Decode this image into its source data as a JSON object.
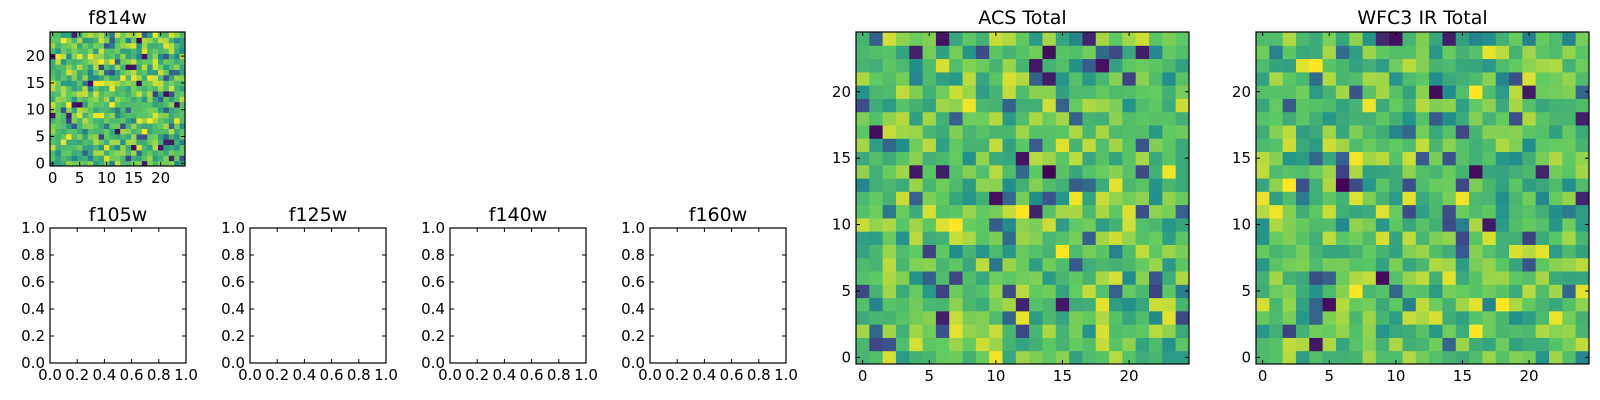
{
  "chart_data": [
    {
      "id": "f814w",
      "type": "heatmap",
      "title": "f814w",
      "grid_size": 25,
      "xlim": [
        -0.5,
        24.5
      ],
      "ylim": [
        -0.5,
        24.5
      ],
      "xticks": [
        0,
        5,
        10,
        15,
        20
      ],
      "yticks": [
        0,
        5,
        10,
        15,
        20
      ],
      "value_range": [
        0,
        1
      ],
      "seed": 814
    },
    {
      "id": "f105w",
      "type": "heatmap",
      "title": "f105w",
      "empty": true,
      "xlim": [
        0,
        1
      ],
      "ylim": [
        0,
        1
      ],
      "xticks": [
        "0.0",
        "0.2",
        "0.4",
        "0.6",
        "0.8",
        "1.0"
      ],
      "yticks": [
        "0.0",
        "0.2",
        "0.4",
        "0.6",
        "0.8",
        "1.0"
      ]
    },
    {
      "id": "f125w",
      "type": "heatmap",
      "title": "f125w",
      "empty": true,
      "xlim": [
        0,
        1
      ],
      "ylim": [
        0,
        1
      ],
      "xticks": [
        "0.0",
        "0.2",
        "0.4",
        "0.6",
        "0.8",
        "1.0"
      ],
      "yticks": [
        "0.0",
        "0.2",
        "0.4",
        "0.6",
        "0.8",
        "1.0"
      ]
    },
    {
      "id": "f140w",
      "type": "heatmap",
      "title": "f140w",
      "empty": true,
      "xlim": [
        0,
        1
      ],
      "ylim": [
        0,
        1
      ],
      "xticks": [
        "0.0",
        "0.2",
        "0.4",
        "0.6",
        "0.8",
        "1.0"
      ],
      "yticks": [
        "0.0",
        "0.2",
        "0.4",
        "0.6",
        "0.8",
        "1.0"
      ]
    },
    {
      "id": "f160w",
      "type": "heatmap",
      "title": "f160w",
      "empty": true,
      "xlim": [
        0,
        1
      ],
      "ylim": [
        0,
        1
      ],
      "xticks": [
        "0.0",
        "0.2",
        "0.4",
        "0.6",
        "0.8",
        "1.0"
      ],
      "yticks": [
        "0.0",
        "0.2",
        "0.4",
        "0.6",
        "0.8",
        "1.0"
      ]
    },
    {
      "id": "acs-total",
      "type": "heatmap",
      "title": "ACS Total",
      "grid_size": 25,
      "xlim": [
        -0.5,
        24.5
      ],
      "ylim": [
        -0.5,
        24.5
      ],
      "xticks": [
        0,
        5,
        10,
        15,
        20
      ],
      "yticks": [
        0,
        5,
        10,
        15,
        20
      ],
      "value_range": [
        0,
        1
      ],
      "seed": 2021
    },
    {
      "id": "wfc3-ir-total",
      "type": "heatmap",
      "title": "WFC3 IR Total",
      "grid_size": 25,
      "xlim": [
        -0.5,
        24.5
      ],
      "ylim": [
        -0.5,
        24.5
      ],
      "xticks": [
        0,
        5,
        10,
        15,
        20
      ],
      "yticks": [
        0,
        5,
        10,
        15,
        20
      ],
      "value_range": [
        0,
        1
      ],
      "seed": 3033
    }
  ],
  "colormap": [
    "#440154",
    "#3b528b",
    "#21918c",
    "#5ec962",
    "#fde725"
  ]
}
